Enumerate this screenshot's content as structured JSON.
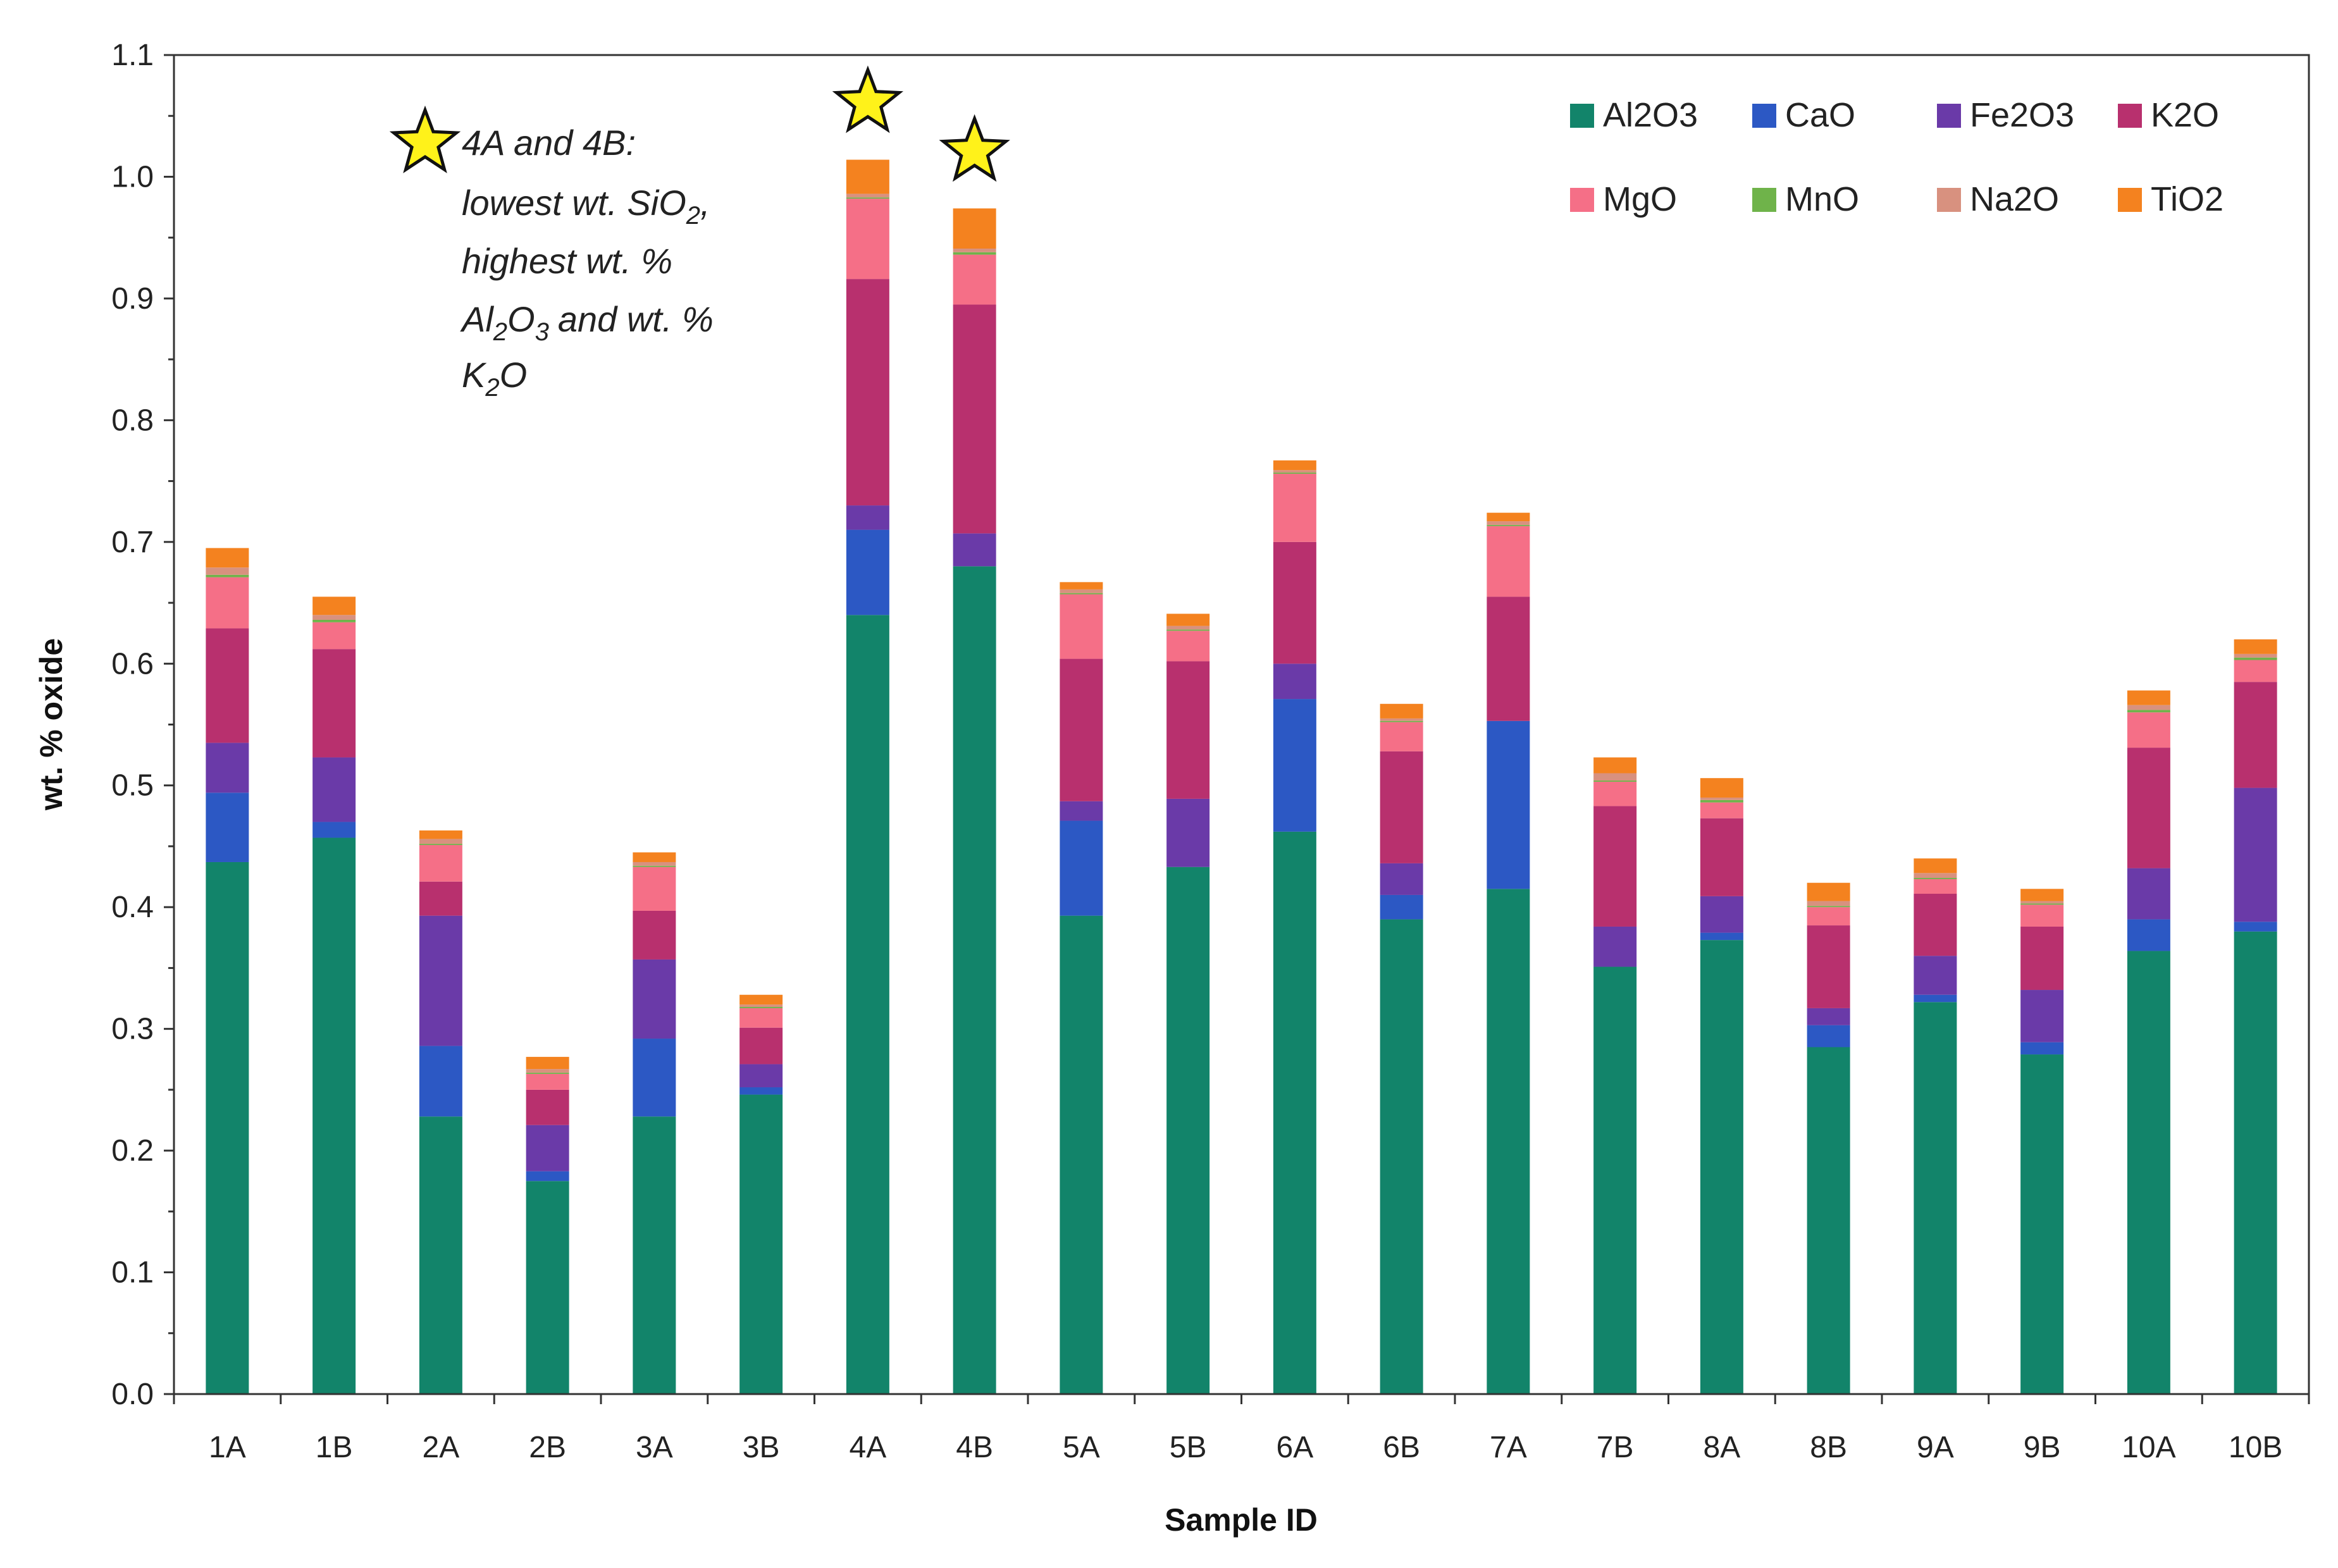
{
  "chart_data": {
    "type": "bar",
    "stacked": true,
    "title": "",
    "xlabel": "Sample ID",
    "ylabel": "wt. % oxide",
    "ylim": [
      0,
      1.1
    ],
    "y_ticks": [
      "0.0",
      "0.1",
      "0.2",
      "0.3",
      "0.4",
      "0.5",
      "0.6",
      "0.7",
      "0.8",
      "0.9",
      "1.0",
      "1.1"
    ],
    "y_tick_values": [
      0,
      0.1,
      0.2,
      0.3,
      0.4,
      0.5,
      0.6,
      0.7,
      0.8,
      0.9,
      1.0,
      1.1
    ],
    "categories": [
      "1A",
      "1B",
      "2A",
      "2B",
      "3A",
      "3B",
      "4A",
      "4B",
      "5A",
      "5B",
      "6A",
      "6B",
      "7A",
      "7B",
      "8A",
      "8B",
      "9A",
      "9B",
      "10A",
      "10B"
    ],
    "series": [
      {
        "name": "Al2O3",
        "color": "#12846a",
        "values": [
          0.437,
          0.457,
          0.228,
          0.175,
          0.228,
          0.246,
          0.64,
          0.68,
          0.393,
          0.433,
          0.462,
          0.39,
          0.415,
          0.351,
          0.373,
          0.285,
          0.322,
          0.279,
          0.364,
          0.38
        ]
      },
      {
        "name": "CaO",
        "color": "#2c58c4",
        "values": [
          0.057,
          0.013,
          0.058,
          0.008,
          0.064,
          0.006,
          0.07,
          0.0,
          0.078,
          0.0,
          0.109,
          0.02,
          0.138,
          0.0,
          0.006,
          0.018,
          0.006,
          0.01,
          0.026,
          0.008
        ]
      },
      {
        "name": "Fe2O3",
        "color": "#6a3aa8",
        "values": [
          0.041,
          0.053,
          0.107,
          0.038,
          0.065,
          0.019,
          0.02,
          0.027,
          0.016,
          0.056,
          0.029,
          0.026,
          0.0,
          0.033,
          0.03,
          0.014,
          0.032,
          0.043,
          0.042,
          0.11
        ]
      },
      {
        "name": "K2O",
        "color": "#b8306e",
        "values": [
          0.094,
          0.089,
          0.028,
          0.029,
          0.04,
          0.03,
          0.186,
          0.188,
          0.117,
          0.113,
          0.1,
          0.092,
          0.102,
          0.099,
          0.064,
          0.068,
          0.051,
          0.052,
          0.099,
          0.087
        ]
      },
      {
        "name": "MgO",
        "color": "#f56f87",
        "values": [
          0.042,
          0.022,
          0.03,
          0.013,
          0.036,
          0.016,
          0.066,
          0.041,
          0.053,
          0.025,
          0.056,
          0.024,
          0.058,
          0.02,
          0.013,
          0.015,
          0.012,
          0.018,
          0.029,
          0.018
        ]
      },
      {
        "name": "MnO",
        "color": "#6fb34a",
        "values": [
          0.002,
          0.002,
          0.001,
          0.001,
          0.001,
          0.001,
          0.001,
          0.002,
          0.001,
          0.001,
          0.001,
          0.001,
          0.001,
          0.001,
          0.002,
          0.001,
          0.001,
          0.001,
          0.002,
          0.002
        ]
      },
      {
        "name": "Na2O",
        "color": "#d8917f",
        "values": [
          0.006,
          0.004,
          0.004,
          0.003,
          0.003,
          0.002,
          0.003,
          0.003,
          0.003,
          0.003,
          0.002,
          0.002,
          0.003,
          0.006,
          0.002,
          0.004,
          0.004,
          0.002,
          0.004,
          0.003
        ]
      },
      {
        "name": "TiO2",
        "color": "#f4821f",
        "values": [
          0.016,
          0.015,
          0.007,
          0.01,
          0.008,
          0.008,
          0.028,
          0.033,
          0.006,
          0.01,
          0.008,
          0.012,
          0.007,
          0.013,
          0.016,
          0.015,
          0.012,
          0.01,
          0.012,
          0.012
        ]
      }
    ],
    "legend_position": "top-right",
    "grid": false,
    "annotation": {
      "lines": [
        "4A and 4B:",
        "lowest wt. SiO",
        "highest wt. %",
        "Al",
        "O",
        "and wt. %",
        "K",
        "O"
      ],
      "subscripts": [
        "2",
        ",",
        "2",
        "3",
        "2"
      ],
      "starred_samples": [
        "4A",
        "4B"
      ],
      "star_color": "#fff21a"
    }
  }
}
